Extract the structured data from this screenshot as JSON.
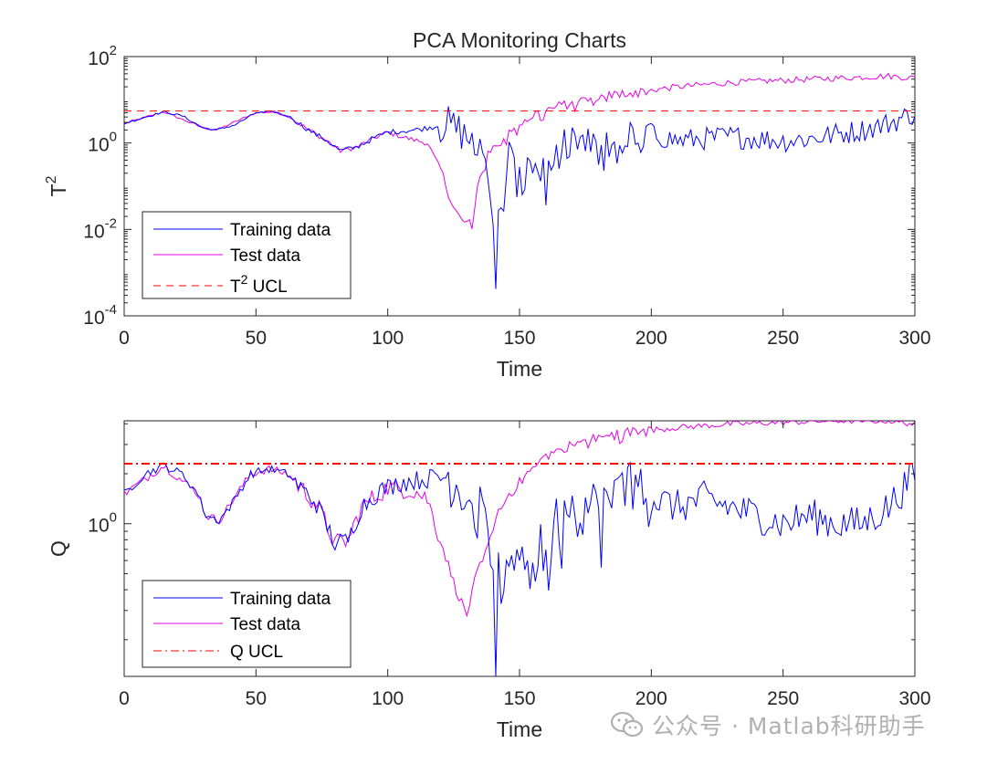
{
  "title": "PCA Monitoring Charts",
  "watermark": "公众号 · Matlab科研助手",
  "colors": {
    "training": "#0000ff",
    "test": "#e600e6",
    "t2_ucl": "#ff0000",
    "q_ucl": "#ff0000",
    "axis": "#262626"
  },
  "chart_data": [
    {
      "type": "line",
      "title": "PCA Monitoring Charts",
      "xlabel": "Time",
      "ylabel_base": "T",
      "ylabel_sup": "2",
      "yscale": "log",
      "xlim": [
        0,
        300
      ],
      "ylim_log10": [
        -4,
        2
      ],
      "xticks": [
        "0",
        "50",
        "100",
        "150",
        "200",
        "250",
        "300"
      ],
      "yticks": [
        {
          "base": "10",
          "exp": "2",
          "log10": 2
        },
        {
          "base": "10",
          "exp": "0",
          "log10": 0
        },
        {
          "base": "10",
          "exp": "-2",
          "log10": -2
        },
        {
          "base": "10",
          "exp": "-4",
          "log10": -4
        }
      ],
      "legend": {
        "position": "bottom-left",
        "entries": [
          {
            "label": "Training data",
            "style": "solid",
            "color_key": "training"
          },
          {
            "label": "Test data",
            "style": "solid",
            "color_key": "test"
          },
          {
            "label_base": "T",
            "label_sup": "2",
            "label_rest": " UCL",
            "style": "dashed",
            "color_key": "t2_ucl"
          }
        ]
      },
      "ucl": 5.5,
      "training_key": [
        [
          0,
          0.45
        ],
        [
          8,
          0.6
        ],
        [
          15,
          0.72
        ],
        [
          22,
          0.63
        ],
        [
          30,
          0.35
        ],
        [
          35,
          0.3
        ],
        [
          42,
          0.42
        ],
        [
          50,
          0.7
        ],
        [
          57,
          0.72
        ],
        [
          63,
          0.6
        ],
        [
          70,
          0.3
        ],
        [
          77,
          0.05
        ],
        [
          82,
          -0.18
        ],
        [
          88,
          -0.1
        ],
        [
          95,
          0.12
        ],
        [
          100,
          0.25
        ],
        [
          110,
          0.3
        ],
        [
          118,
          0.38
        ],
        [
          122,
          0.45
        ],
        [
          128,
          0.25
        ],
        [
          133,
          -0.1
        ],
        [
          136,
          0.2
        ],
        [
          138,
          -0.6
        ],
        [
          140,
          -2.2
        ],
        [
          141,
          -3.1
        ],
        [
          142,
          -1.2
        ],
        [
          144,
          -1.5
        ],
        [
          146,
          -0.3
        ],
        [
          150,
          -1.0
        ],
        [
          155,
          -0.5
        ],
        [
          160,
          -0.8
        ],
        [
          166,
          -0.2
        ],
        [
          170,
          0.1
        ],
        [
          180,
          -0.2
        ],
        [
          190,
          0.05
        ],
        [
          200,
          0.2
        ],
        [
          210,
          0.05
        ],
        [
          220,
          0.1
        ],
        [
          230,
          0.15
        ],
        [
          240,
          0.1
        ],
        [
          250,
          0.05
        ],
        [
          260,
          0.1
        ],
        [
          270,
          0.2
        ],
        [
          280,
          0.3
        ],
        [
          290,
          0.45
        ],
        [
          300,
          0.7
        ]
      ],
      "test_key": [
        [
          0,
          0.45
        ],
        [
          15,
          0.72
        ],
        [
          30,
          0.35
        ],
        [
          35,
          0.3
        ],
        [
          50,
          0.7
        ],
        [
          57,
          0.72
        ],
        [
          63,
          0.6
        ],
        [
          70,
          0.3
        ],
        [
          77,
          0.05
        ],
        [
          82,
          -0.18
        ],
        [
          88,
          -0.1
        ],
        [
          95,
          0.12
        ],
        [
          100,
          0.25
        ],
        [
          108,
          0.1
        ],
        [
          115,
          0.0
        ],
        [
          120,
          -0.6
        ],
        [
          125,
          -1.5
        ],
        [
          128,
          -1.8
        ],
        [
          132,
          -1.9
        ],
        [
          134,
          -1.0
        ],
        [
          138,
          -0.3
        ],
        [
          143,
          0.1
        ],
        [
          150,
          0.45
        ],
        [
          157,
          0.7
        ],
        [
          165,
          0.85
        ],
        [
          175,
          1.0
        ],
        [
          190,
          1.15
        ],
        [
          210,
          1.3
        ],
        [
          230,
          1.4
        ],
        [
          250,
          1.45
        ],
        [
          270,
          1.5
        ],
        [
          290,
          1.55
        ],
        [
          300,
          1.5
        ]
      ]
    },
    {
      "type": "line",
      "xlabel": "Time",
      "ylabel": "Q",
      "yscale": "log",
      "xlim": [
        0,
        300
      ],
      "ylim_log10": [
        -0.92,
        0.62
      ],
      "xticks": [
        "0",
        "50",
        "100",
        "150",
        "200",
        "250",
        "300"
      ],
      "yticks": [
        {
          "base": "10",
          "exp": "0",
          "log10": 0
        }
      ],
      "legend": {
        "position": "bottom-left",
        "entries": [
          {
            "label": "Training data",
            "style": "solid",
            "color_key": "training"
          },
          {
            "label": "Test data",
            "style": "solid",
            "color_key": "test"
          },
          {
            "label": "Q UCL",
            "style": "dashdot",
            "color_key": "q_ucl"
          }
        ]
      },
      "ucl": 2.3,
      "training_key": [
        [
          0,
          0.18
        ],
        [
          8,
          0.3
        ],
        [
          15,
          0.35
        ],
        [
          22,
          0.3
        ],
        [
          28,
          0.18
        ],
        [
          31,
          0.05
        ],
        [
          36,
          0.02
        ],
        [
          40,
          0.1
        ],
        [
          48,
          0.3
        ],
        [
          55,
          0.33
        ],
        [
          62,
          0.3
        ],
        [
          68,
          0.2
        ],
        [
          73,
          0.12
        ],
        [
          78,
          -0.05
        ],
        [
          80,
          -0.12
        ],
        [
          85,
          -0.1
        ],
        [
          90,
          0.1
        ],
        [
          97,
          0.2
        ],
        [
          105,
          0.25
        ],
        [
          115,
          0.27
        ],
        [
          122,
          0.3
        ],
        [
          128,
          0.22
        ],
        [
          133,
          0.1
        ],
        [
          137,
          0.0
        ],
        [
          140,
          -0.4
        ],
        [
          141,
          -0.92
        ],
        [
          142,
          -0.3
        ],
        [
          145,
          -0.4
        ],
        [
          150,
          -0.1
        ],
        [
          155,
          -0.2
        ],
        [
          160,
          -0.15
        ],
        [
          165,
          0.05
        ],
        [
          170,
          0.1
        ],
        [
          180,
          0.1
        ],
        [
          190,
          0.2
        ],
        [
          200,
          0.15
        ],
        [
          210,
          0.1
        ],
        [
          220,
          0.15
        ],
        [
          230,
          0.1
        ],
        [
          240,
          0.05
        ],
        [
          250,
          0.0
        ],
        [
          260,
          0.05
        ],
        [
          270,
          0.0
        ],
        [
          280,
          0.0
        ],
        [
          290,
          0.1
        ],
        [
          300,
          0.3
        ]
      ],
      "test_key": [
        [
          0,
          0.18
        ],
        [
          15,
          0.35
        ],
        [
          28,
          0.18
        ],
        [
          31,
          0.05
        ],
        [
          36,
          0.02
        ],
        [
          48,
          0.3
        ],
        [
          55,
          0.33
        ],
        [
          62,
          0.3
        ],
        [
          68,
          0.2
        ],
        [
          73,
          0.12
        ],
        [
          78,
          -0.05
        ],
        [
          80,
          -0.12
        ],
        [
          85,
          -0.1
        ],
        [
          90,
          0.1
        ],
        [
          100,
          0.22
        ],
        [
          110,
          0.2
        ],
        [
          115,
          0.15
        ],
        [
          120,
          -0.1
        ],
        [
          126,
          -0.4
        ],
        [
          130,
          -0.55
        ],
        [
          133,
          -0.35
        ],
        [
          138,
          -0.1
        ],
        [
          143,
          0.1
        ],
        [
          150,
          0.25
        ],
        [
          157,
          0.38
        ],
        [
          165,
          0.45
        ],
        [
          175,
          0.5
        ],
        [
          190,
          0.55
        ],
        [
          210,
          0.58
        ],
        [
          230,
          0.6
        ],
        [
          250,
          0.61
        ],
        [
          270,
          0.62
        ],
        [
          290,
          0.62
        ],
        [
          300,
          0.6
        ]
      ]
    }
  ]
}
